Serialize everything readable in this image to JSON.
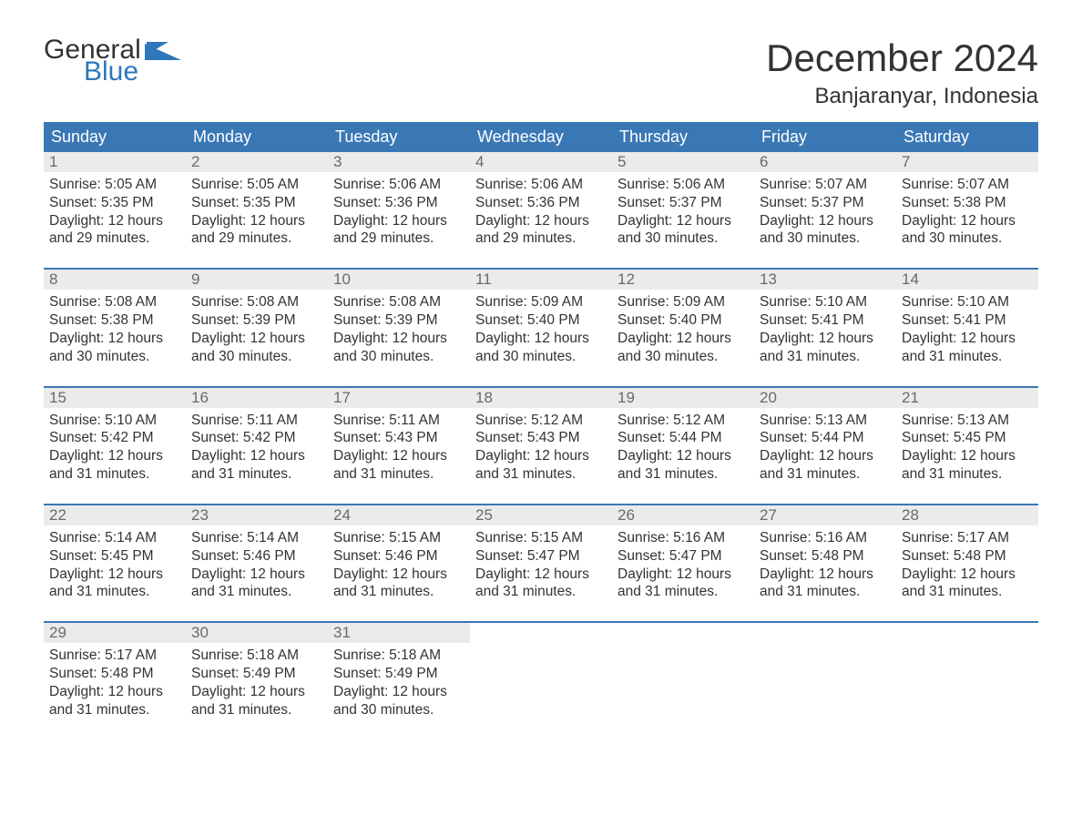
{
  "logo": {
    "top": "General",
    "bottom": "Blue",
    "flag_color": "#2f77bb"
  },
  "title": "December 2024",
  "location": "Banjaranyar, Indonesia",
  "colors": {
    "header_bg": "#3a78b5",
    "header_text": "#ffffff",
    "date_bg": "#ebebeb",
    "date_text": "#6a6a6a",
    "body_text": "#333333",
    "rule": "#3a78b5"
  },
  "day_labels": [
    "Sunday",
    "Monday",
    "Tuesday",
    "Wednesday",
    "Thursday",
    "Friday",
    "Saturday"
  ],
  "weeks": [
    [
      {
        "date": "1",
        "sunrise": "Sunrise: 5:05 AM",
        "sunset": "Sunset: 5:35 PM",
        "dl1": "Daylight: 12 hours",
        "dl2": "and 29 minutes."
      },
      {
        "date": "2",
        "sunrise": "Sunrise: 5:05 AM",
        "sunset": "Sunset: 5:35 PM",
        "dl1": "Daylight: 12 hours",
        "dl2": "and 29 minutes."
      },
      {
        "date": "3",
        "sunrise": "Sunrise: 5:06 AM",
        "sunset": "Sunset: 5:36 PM",
        "dl1": "Daylight: 12 hours",
        "dl2": "and 29 minutes."
      },
      {
        "date": "4",
        "sunrise": "Sunrise: 5:06 AM",
        "sunset": "Sunset: 5:36 PM",
        "dl1": "Daylight: 12 hours",
        "dl2": "and 29 minutes."
      },
      {
        "date": "5",
        "sunrise": "Sunrise: 5:06 AM",
        "sunset": "Sunset: 5:37 PM",
        "dl1": "Daylight: 12 hours",
        "dl2": "and 30 minutes."
      },
      {
        "date": "6",
        "sunrise": "Sunrise: 5:07 AM",
        "sunset": "Sunset: 5:37 PM",
        "dl1": "Daylight: 12 hours",
        "dl2": "and 30 minutes."
      },
      {
        "date": "7",
        "sunrise": "Sunrise: 5:07 AM",
        "sunset": "Sunset: 5:38 PM",
        "dl1": "Daylight: 12 hours",
        "dl2": "and 30 minutes."
      }
    ],
    [
      {
        "date": "8",
        "sunrise": "Sunrise: 5:08 AM",
        "sunset": "Sunset: 5:38 PM",
        "dl1": "Daylight: 12 hours",
        "dl2": "and 30 minutes."
      },
      {
        "date": "9",
        "sunrise": "Sunrise: 5:08 AM",
        "sunset": "Sunset: 5:39 PM",
        "dl1": "Daylight: 12 hours",
        "dl2": "and 30 minutes."
      },
      {
        "date": "10",
        "sunrise": "Sunrise: 5:08 AM",
        "sunset": "Sunset: 5:39 PM",
        "dl1": "Daylight: 12 hours",
        "dl2": "and 30 minutes."
      },
      {
        "date": "11",
        "sunrise": "Sunrise: 5:09 AM",
        "sunset": "Sunset: 5:40 PM",
        "dl1": "Daylight: 12 hours",
        "dl2": "and 30 minutes."
      },
      {
        "date": "12",
        "sunrise": "Sunrise: 5:09 AM",
        "sunset": "Sunset: 5:40 PM",
        "dl1": "Daylight: 12 hours",
        "dl2": "and 30 minutes."
      },
      {
        "date": "13",
        "sunrise": "Sunrise: 5:10 AM",
        "sunset": "Sunset: 5:41 PM",
        "dl1": "Daylight: 12 hours",
        "dl2": "and 31 minutes."
      },
      {
        "date": "14",
        "sunrise": "Sunrise: 5:10 AM",
        "sunset": "Sunset: 5:41 PM",
        "dl1": "Daylight: 12 hours",
        "dl2": "and 31 minutes."
      }
    ],
    [
      {
        "date": "15",
        "sunrise": "Sunrise: 5:10 AM",
        "sunset": "Sunset: 5:42 PM",
        "dl1": "Daylight: 12 hours",
        "dl2": "and 31 minutes."
      },
      {
        "date": "16",
        "sunrise": "Sunrise: 5:11 AM",
        "sunset": "Sunset: 5:42 PM",
        "dl1": "Daylight: 12 hours",
        "dl2": "and 31 minutes."
      },
      {
        "date": "17",
        "sunrise": "Sunrise: 5:11 AM",
        "sunset": "Sunset: 5:43 PM",
        "dl1": "Daylight: 12 hours",
        "dl2": "and 31 minutes."
      },
      {
        "date": "18",
        "sunrise": "Sunrise: 5:12 AM",
        "sunset": "Sunset: 5:43 PM",
        "dl1": "Daylight: 12 hours",
        "dl2": "and 31 minutes."
      },
      {
        "date": "19",
        "sunrise": "Sunrise: 5:12 AM",
        "sunset": "Sunset: 5:44 PM",
        "dl1": "Daylight: 12 hours",
        "dl2": "and 31 minutes."
      },
      {
        "date": "20",
        "sunrise": "Sunrise: 5:13 AM",
        "sunset": "Sunset: 5:44 PM",
        "dl1": "Daylight: 12 hours",
        "dl2": "and 31 minutes."
      },
      {
        "date": "21",
        "sunrise": "Sunrise: 5:13 AM",
        "sunset": "Sunset: 5:45 PM",
        "dl1": "Daylight: 12 hours",
        "dl2": "and 31 minutes."
      }
    ],
    [
      {
        "date": "22",
        "sunrise": "Sunrise: 5:14 AM",
        "sunset": "Sunset: 5:45 PM",
        "dl1": "Daylight: 12 hours",
        "dl2": "and 31 minutes."
      },
      {
        "date": "23",
        "sunrise": "Sunrise: 5:14 AM",
        "sunset": "Sunset: 5:46 PM",
        "dl1": "Daylight: 12 hours",
        "dl2": "and 31 minutes."
      },
      {
        "date": "24",
        "sunrise": "Sunrise: 5:15 AM",
        "sunset": "Sunset: 5:46 PM",
        "dl1": "Daylight: 12 hours",
        "dl2": "and 31 minutes."
      },
      {
        "date": "25",
        "sunrise": "Sunrise: 5:15 AM",
        "sunset": "Sunset: 5:47 PM",
        "dl1": "Daylight: 12 hours",
        "dl2": "and 31 minutes."
      },
      {
        "date": "26",
        "sunrise": "Sunrise: 5:16 AM",
        "sunset": "Sunset: 5:47 PM",
        "dl1": "Daylight: 12 hours",
        "dl2": "and 31 minutes."
      },
      {
        "date": "27",
        "sunrise": "Sunrise: 5:16 AM",
        "sunset": "Sunset: 5:48 PM",
        "dl1": "Daylight: 12 hours",
        "dl2": "and 31 minutes."
      },
      {
        "date": "28",
        "sunrise": "Sunrise: 5:17 AM",
        "sunset": "Sunset: 5:48 PM",
        "dl1": "Daylight: 12 hours",
        "dl2": "and 31 minutes."
      }
    ],
    [
      {
        "date": "29",
        "sunrise": "Sunrise: 5:17 AM",
        "sunset": "Sunset: 5:48 PM",
        "dl1": "Daylight: 12 hours",
        "dl2": "and 31 minutes."
      },
      {
        "date": "30",
        "sunrise": "Sunrise: 5:18 AM",
        "sunset": "Sunset: 5:49 PM",
        "dl1": "Daylight: 12 hours",
        "dl2": "and 31 minutes."
      },
      {
        "date": "31",
        "sunrise": "Sunrise: 5:18 AM",
        "sunset": "Sunset: 5:49 PM",
        "dl1": "Daylight: 12 hours",
        "dl2": "and 30 minutes."
      },
      null,
      null,
      null,
      null
    ]
  ]
}
